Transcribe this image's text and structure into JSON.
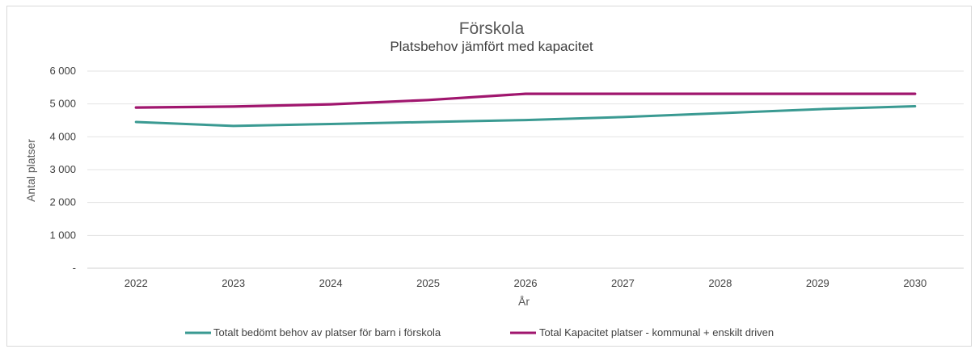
{
  "chart_data": {
    "type": "line",
    "title": "Förskola",
    "subtitle": "Platsbehov jämfört med kapacitet",
    "xlabel": "År",
    "ylabel": "Antal platser",
    "x": [
      "2022",
      "2023",
      "2024",
      "2025",
      "2026",
      "2027",
      "2028",
      "2029",
      "2030"
    ],
    "ylim": [
      0,
      6000
    ],
    "yticks": [
      0,
      1000,
      2000,
      3000,
      4000,
      5000,
      6000
    ],
    "ytick_labels": [
      "-",
      "1 000",
      "2 000",
      "3 000",
      "4 000",
      "5 000",
      "6 000"
    ],
    "grid": true,
    "legend_position": "bottom",
    "series": [
      {
        "name": "Totalt bedömt behov av platser för barn i förskola",
        "color": "#3a9a92",
        "values": [
          4450,
          4330,
          4390,
          4450,
          4510,
          4600,
          4720,
          4840,
          4930
        ]
      },
      {
        "name": "Total Kapacitet platser - kommunal + enskilt driven",
        "color": "#a0166e",
        "values": [
          4890,
          4920,
          4990,
          5120,
          5310,
          5310,
          5310,
          5310,
          5310
        ]
      }
    ]
  }
}
